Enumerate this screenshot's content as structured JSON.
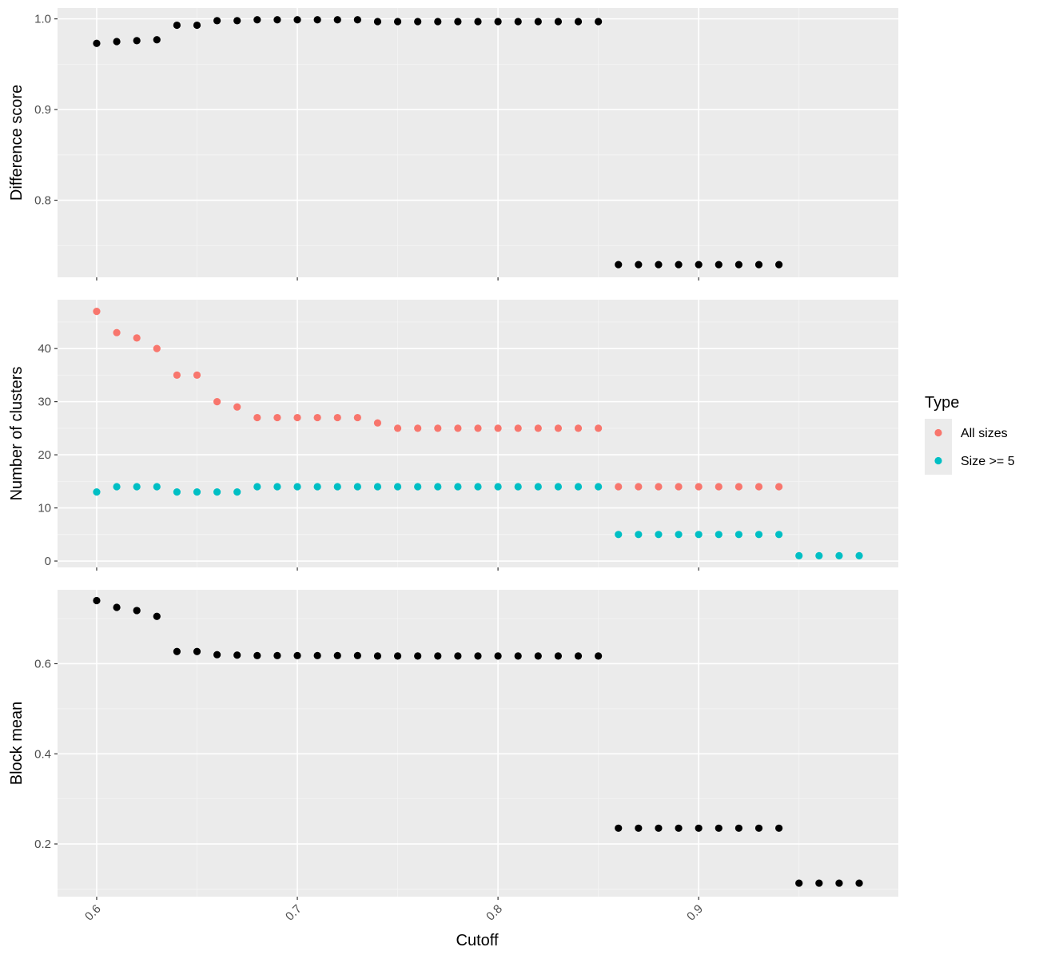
{
  "theme": {
    "panel_background": "#ebebeb",
    "grid_major": "#ffffff",
    "grid_minor": "#f5f5f5",
    "tick_color": "#333333",
    "text_color": "#4d4d4d",
    "point_default": "#000000"
  },
  "chart_data": [
    {
      "type": "scatter",
      "ylabel": "Difference score",
      "xlabel": "",
      "x_ticks": [
        "0.6",
        "0.7",
        "0.8",
        "0.9"
      ],
      "y_ticks": [
        "0.8",
        "0.9",
        "1.0"
      ],
      "ylim": [
        0.715,
        1.012
      ],
      "xlim": [
        0.5805,
        0.9995
      ],
      "series": [
        {
          "color": "#000000",
          "x": [
            0.6,
            0.61,
            0.62,
            0.63,
            0.64,
            0.65,
            0.66,
            0.67,
            0.68,
            0.69,
            0.7,
            0.71,
            0.72,
            0.73,
            0.74,
            0.75,
            0.76,
            0.77,
            0.78,
            0.79,
            0.8,
            0.81,
            0.82,
            0.83,
            0.84,
            0.85,
            0.86,
            0.87,
            0.88,
            0.89,
            0.9,
            0.91,
            0.92,
            0.93,
            0.94
          ],
          "y": [
            0.973,
            0.975,
            0.976,
            0.977,
            0.993,
            0.993,
            0.998,
            0.998,
            0.999,
            0.999,
            0.999,
            0.999,
            0.999,
            0.999,
            0.997,
            0.997,
            0.997,
            0.997,
            0.997,
            0.997,
            0.997,
            0.997,
            0.997,
            0.997,
            0.997,
            0.997,
            0.729,
            0.729,
            0.729,
            0.729,
            0.729,
            0.729,
            0.729,
            0.729,
            0.729
          ]
        }
      ]
    },
    {
      "type": "scatter",
      "ylabel": "Number of clusters",
      "xlabel": "",
      "x_ticks": [
        "0.6",
        "0.7",
        "0.8",
        "0.9"
      ],
      "y_ticks": [
        "0",
        "10",
        "20",
        "30",
        "40"
      ],
      "ylim": [
        -1.2,
        49.2
      ],
      "xlim": [
        0.5805,
        0.9995
      ],
      "series": [
        {
          "name": "All sizes",
          "color": "#f8766d",
          "x": [
            0.6,
            0.61,
            0.62,
            0.63,
            0.64,
            0.65,
            0.66,
            0.67,
            0.68,
            0.69,
            0.7,
            0.71,
            0.72,
            0.73,
            0.74,
            0.75,
            0.76,
            0.77,
            0.78,
            0.79,
            0.8,
            0.81,
            0.82,
            0.83,
            0.84,
            0.85,
            0.86,
            0.87,
            0.88,
            0.89,
            0.9,
            0.91,
            0.92,
            0.93,
            0.94
          ],
          "y": [
            47,
            43,
            42,
            40,
            35,
            35,
            30,
            29,
            27,
            27,
            27,
            27,
            27,
            27,
            26,
            25,
            25,
            25,
            25,
            25,
            25,
            25,
            25,
            25,
            25,
            25,
            14,
            14,
            14,
            14,
            14,
            14,
            14,
            14,
            14
          ]
        },
        {
          "name": "Size >= 5",
          "color": "#00bfc4",
          "x": [
            0.6,
            0.61,
            0.62,
            0.63,
            0.64,
            0.65,
            0.66,
            0.67,
            0.68,
            0.69,
            0.7,
            0.71,
            0.72,
            0.73,
            0.74,
            0.75,
            0.76,
            0.77,
            0.78,
            0.79,
            0.8,
            0.81,
            0.82,
            0.83,
            0.84,
            0.85,
            0.86,
            0.87,
            0.88,
            0.89,
            0.9,
            0.91,
            0.92,
            0.93,
            0.94,
            0.95,
            0.96,
            0.97,
            0.98
          ],
          "y": [
            13,
            14,
            14,
            14,
            13,
            13,
            13,
            13,
            14,
            14,
            14,
            14,
            14,
            14,
            14,
            14,
            14,
            14,
            14,
            14,
            14,
            14,
            14,
            14,
            14,
            14,
            5,
            5,
            5,
            5,
            5,
            5,
            5,
            5,
            5,
            1,
            1,
            1,
            1
          ]
        }
      ]
    },
    {
      "type": "scatter",
      "ylabel": "Block mean",
      "xlabel": "Cutoff",
      "x_ticks": [
        "0.6",
        "0.7",
        "0.8",
        "0.9"
      ],
      "y_ticks": [
        "0.2",
        "0.4",
        "0.6"
      ],
      "ylim": [
        0.083,
        0.764
      ],
      "xlim": [
        0.5805,
        0.9995
      ],
      "series": [
        {
          "color": "#000000",
          "x": [
            0.6,
            0.61,
            0.62,
            0.63,
            0.64,
            0.65,
            0.66,
            0.67,
            0.68,
            0.69,
            0.7,
            0.71,
            0.72,
            0.73,
            0.74,
            0.75,
            0.76,
            0.77,
            0.78,
            0.79,
            0.8,
            0.81,
            0.82,
            0.83,
            0.84,
            0.85,
            0.86,
            0.87,
            0.88,
            0.89,
            0.9,
            0.91,
            0.92,
            0.93,
            0.94,
            0.95,
            0.96,
            0.97,
            0.98
          ],
          "y": [
            0.74,
            0.725,
            0.718,
            0.705,
            0.627,
            0.627,
            0.62,
            0.619,
            0.618,
            0.618,
            0.618,
            0.618,
            0.618,
            0.618,
            0.617,
            0.617,
            0.617,
            0.617,
            0.617,
            0.617,
            0.617,
            0.617,
            0.617,
            0.617,
            0.617,
            0.617,
            0.235,
            0.235,
            0.235,
            0.235,
            0.235,
            0.235,
            0.235,
            0.235,
            0.235,
            0.113,
            0.113,
            0.113,
            0.113
          ]
        }
      ]
    }
  ],
  "legend": {
    "title": "Type",
    "placement": "right",
    "items": [
      {
        "label": "All sizes",
        "color": "#f8766d"
      },
      {
        "label": "Size >= 5",
        "color": "#00bfc4"
      }
    ]
  }
}
